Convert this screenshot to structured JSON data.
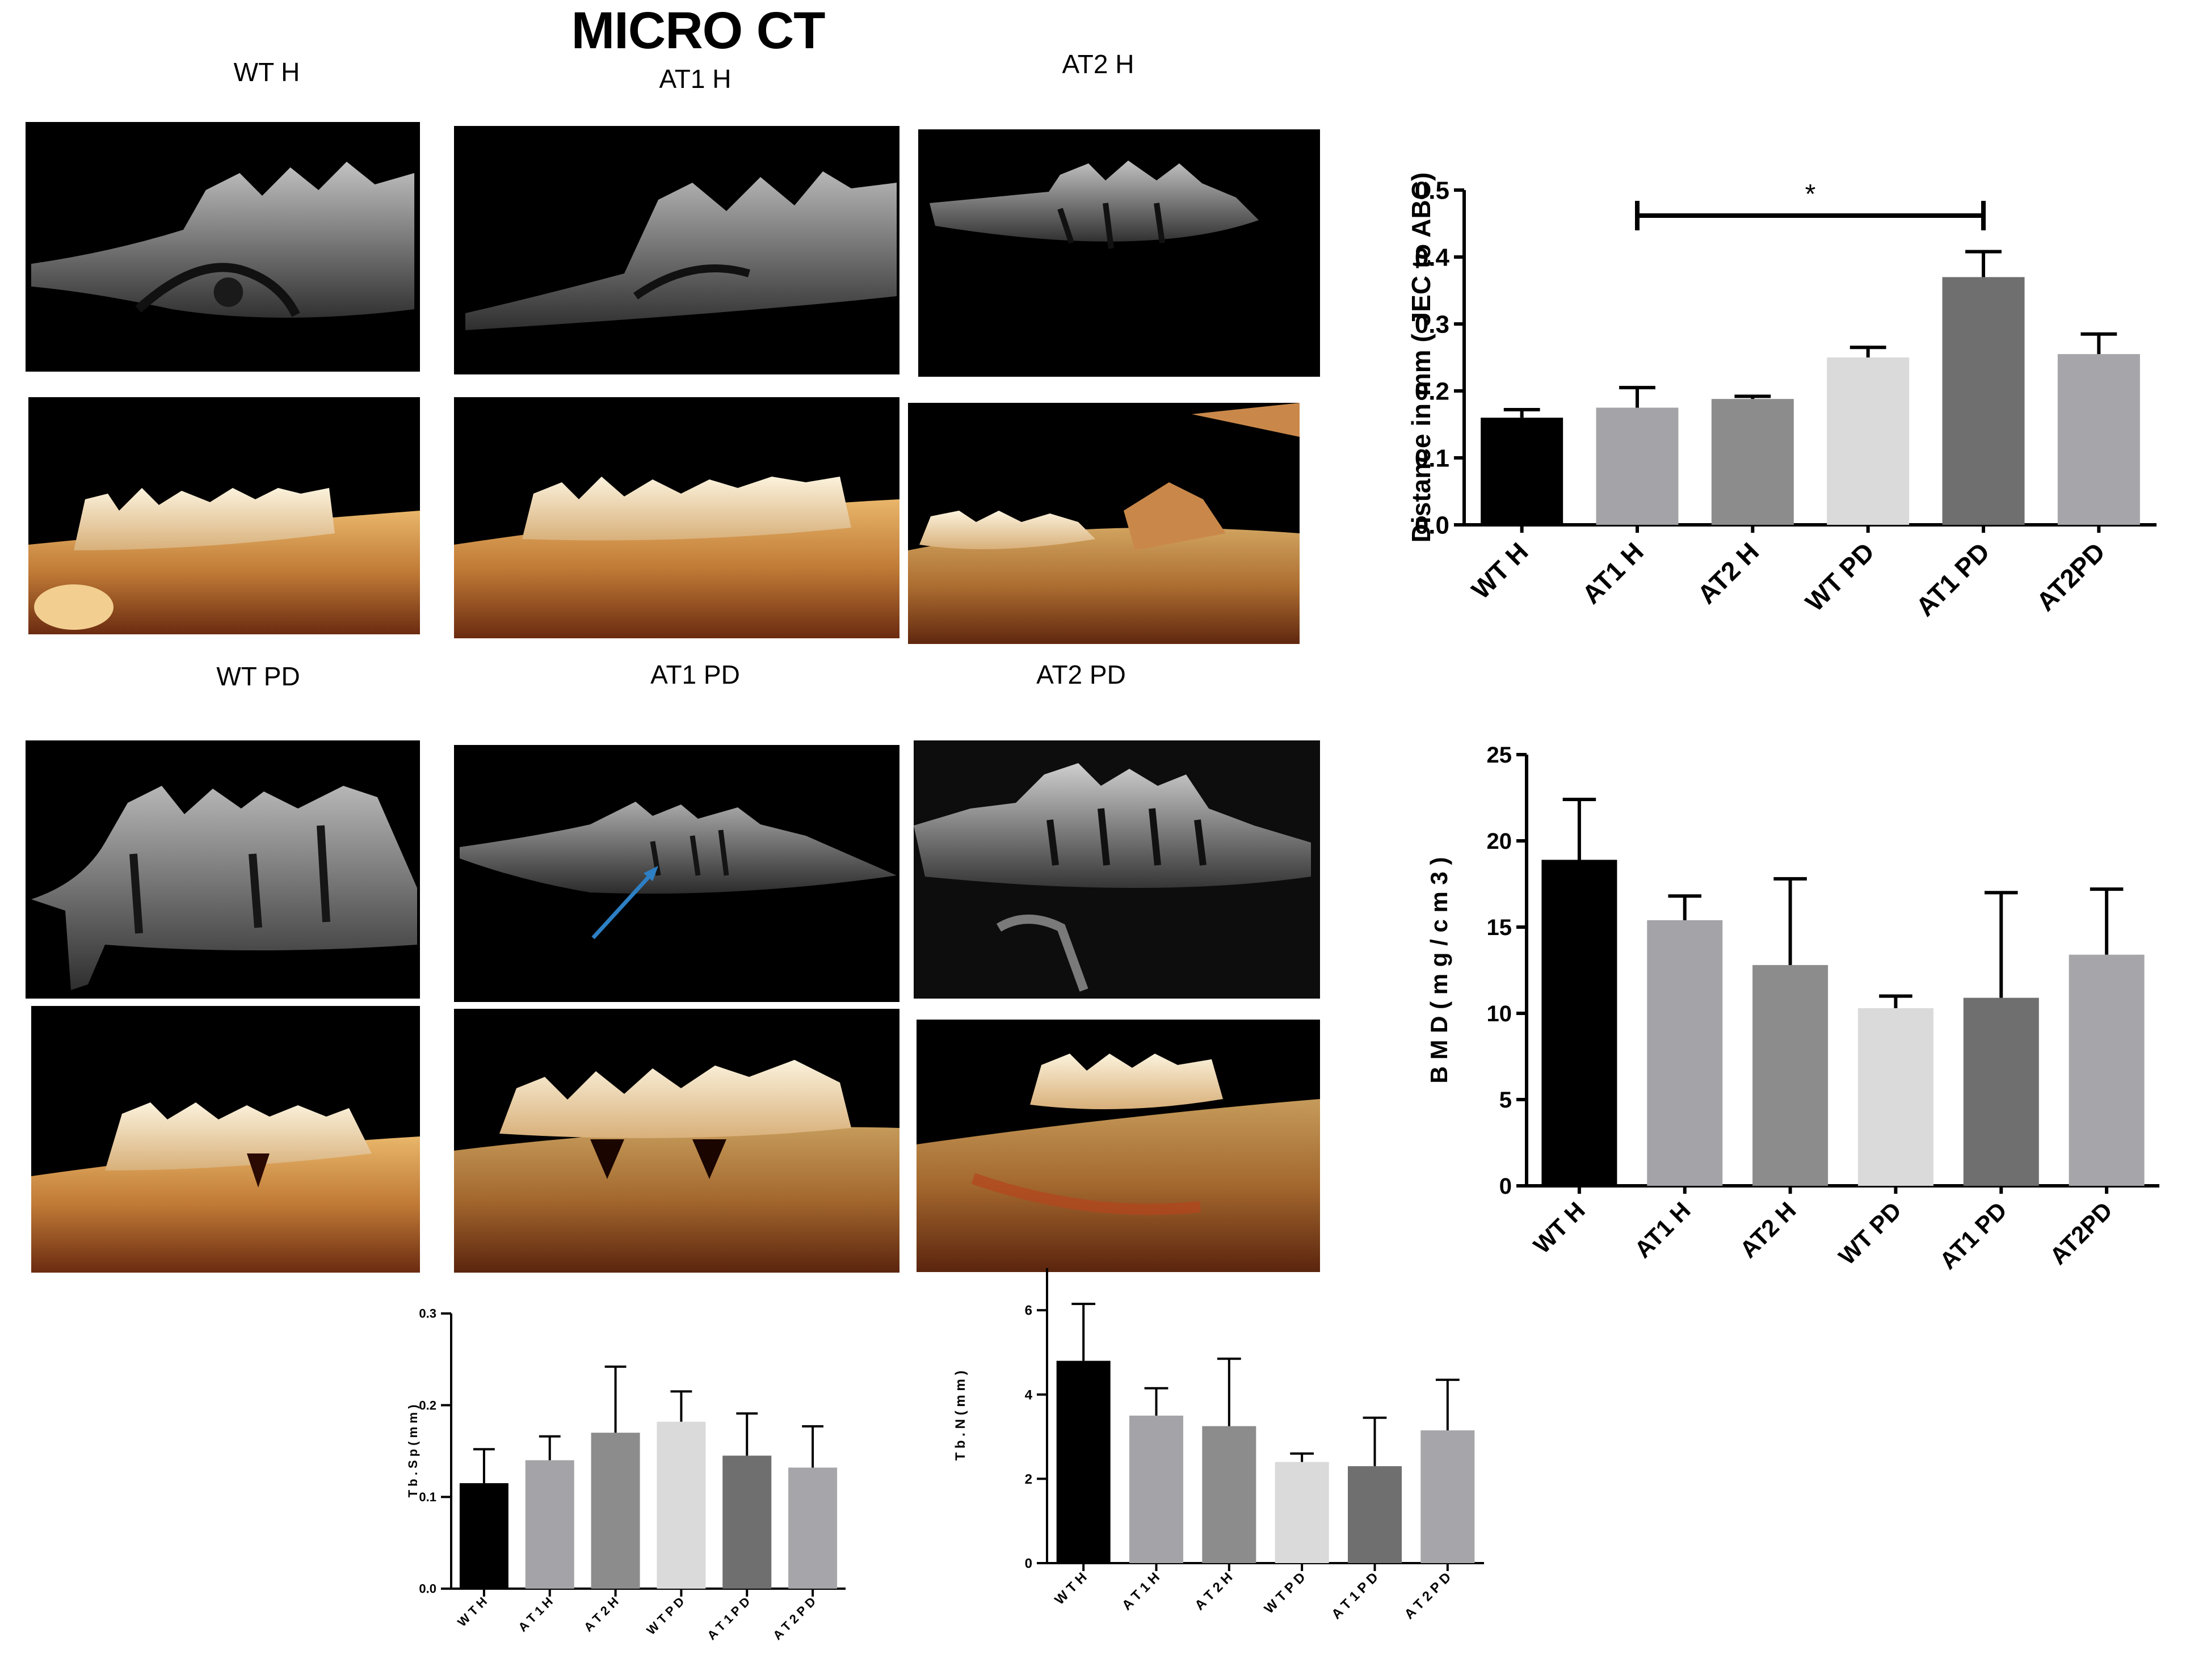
{
  "figure_title": "MICRO CT",
  "panel_labels": [
    "WT H",
    "AT1 H",
    "AT2 H",
    "WT PD",
    "AT1 PD",
    "AT2 PD"
  ],
  "colors": {
    "WT H": "#000000",
    "AT1 H": "#a4a4a8",
    "AT2 H": "#8c8c8c",
    "WT PD": "#dadada",
    "AT1 PD": "#6f6f6f",
    "AT2PD": "#a6a6aa",
    "arrow": "#2d7fc4"
  },
  "chart_data": [
    {
      "id": "distance",
      "type": "bar",
      "categories": [
        "WT H",
        "AT1 H",
        "AT2 H",
        "WT PD",
        "AT1 PD",
        "AT2PD"
      ],
      "values": [
        0.16,
        0.175,
        0.188,
        0.25,
        0.37,
        0.255
      ],
      "errors": [
        0.012,
        0.03,
        0.004,
        0.015,
        0.038,
        0.03
      ],
      "ylabel": "Distance in mm ( JEC to ABC)",
      "ylim": [
        0,
        0.5
      ],
      "yticks": [
        "0.0",
        "0.1",
        "0.2",
        "0.3",
        "0.4",
        "0.5"
      ],
      "significance": {
        "from": "AT1 H",
        "to": "AT1 PD",
        "label": "*"
      }
    },
    {
      "id": "bmd",
      "type": "bar",
      "categories": [
        "WT H",
        "AT1 H",
        "AT2 H",
        "WT PD",
        "AT1 PD",
        "AT2PD"
      ],
      "values": [
        18.9,
        15.4,
        12.8,
        10.3,
        10.9,
        13.4
      ],
      "errors": [
        3.5,
        1.4,
        5.0,
        0.7,
        6.1,
        3.8
      ],
      "ylabel": "B M D  ( m g / c m 3 )",
      "ylim": [
        0,
        25
      ],
      "yticks": [
        "0",
        "5",
        "10",
        "15",
        "20",
        "25"
      ]
    },
    {
      "id": "tbsp",
      "type": "bar",
      "categories": [
        "W T H",
        "A T 1 H",
        "A T 2 H",
        "W T P D",
        "A T 1 P D",
        "A T 2 P D"
      ],
      "values": [
        0.115,
        0.14,
        0.17,
        0.182,
        0.145,
        0.132
      ],
      "errors": [
        0.037,
        0.026,
        0.072,
        0.033,
        0.046,
        0.045
      ],
      "ylabel": "T b . S p  ( m m )",
      "ylim": [
        0,
        0.3
      ],
      "yticks": [
        "0.0",
        "0.1",
        "0.2",
        "0.3"
      ]
    },
    {
      "id": "tbn",
      "type": "bar",
      "categories": [
        "W T H",
        "A T 1 H",
        "A T 2 H",
        "W T P D",
        "A T 1 P D",
        "A T 2 P D"
      ],
      "values": [
        4.8,
        3.5,
        3.25,
        2.4,
        2.3,
        3.15
      ],
      "errors": [
        1.35,
        0.65,
        1.6,
        0.2,
        1.15,
        1.2
      ],
      "ylabel": "T b . N  ( m m )",
      "ylim": [
        0,
        7
      ],
      "yticks": [
        "0",
        "2",
        "4",
        "6"
      ]
    }
  ]
}
